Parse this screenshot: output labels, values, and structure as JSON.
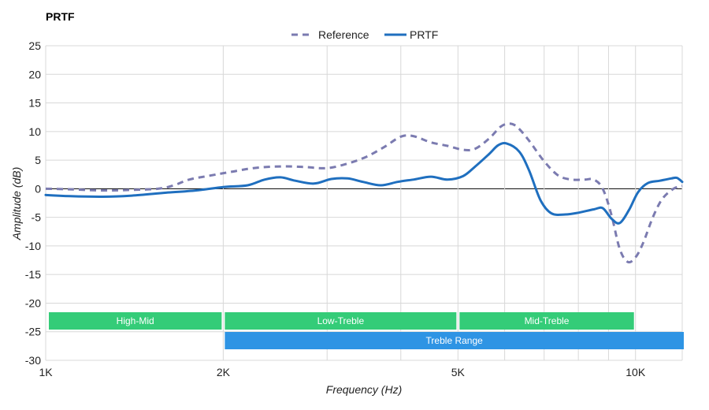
{
  "chart_data": {
    "type": "line",
    "title": "PRTF",
    "xlabel": "Frequency (Hz)",
    "ylabel": "Amplitude (dB)",
    "x_scale": "log",
    "xlim": [
      1000,
      12000
    ],
    "ylim": [
      -30,
      25
    ],
    "grid": true,
    "legend_position": "top-center",
    "x_ticks": [
      {
        "value": 1000,
        "label": "1K"
      },
      {
        "value": 2000,
        "label": "2K"
      },
      {
        "value": 5000,
        "label": "5K"
      },
      {
        "value": 10000,
        "label": "10K"
      }
    ],
    "x_minor_gridlines": [
      3000,
      4000,
      6000,
      7000,
      8000,
      9000,
      12000
    ],
    "y_ticks": [
      25,
      20,
      15,
      10,
      5,
      0,
      -5,
      -10,
      -15,
      -20,
      -25,
      -30
    ],
    "series": [
      {
        "name": "Reference",
        "color": "#7b7bb0",
        "style": "dashed",
        "points": [
          [
            1000,
            0
          ],
          [
            1100,
            -0.1
          ],
          [
            1250,
            -0.3
          ],
          [
            1400,
            -0.2
          ],
          [
            1550,
            0
          ],
          [
            1650,
            0.6
          ],
          [
            1750,
            1.6
          ],
          [
            1900,
            2.3
          ],
          [
            2050,
            2.9
          ],
          [
            2250,
            3.6
          ],
          [
            2500,
            3.9
          ],
          [
            2750,
            3.8
          ],
          [
            3000,
            3.6
          ],
          [
            3250,
            4.4
          ],
          [
            3500,
            5.6
          ],
          [
            3750,
            7.3
          ],
          [
            4000,
            9.1
          ],
          [
            4200,
            9.2
          ],
          [
            4500,
            8.1
          ],
          [
            4800,
            7.5
          ],
          [
            5100,
            6.8
          ],
          [
            5350,
            7.0
          ],
          [
            5650,
            8.8
          ],
          [
            5900,
            10.8
          ],
          [
            6100,
            11.4
          ],
          [
            6300,
            10.8
          ],
          [
            6600,
            8.4
          ],
          [
            7000,
            4.8
          ],
          [
            7400,
            2.3
          ],
          [
            7800,
            1.6
          ],
          [
            8200,
            1.6
          ],
          [
            8500,
            1.6
          ],
          [
            8800,
            0
          ],
          [
            9100,
            -4.5
          ],
          [
            9400,
            -10.5
          ],
          [
            9700,
            -12.8
          ],
          [
            10000,
            -12.0
          ],
          [
            10300,
            -9.5
          ],
          [
            10700,
            -5.0
          ],
          [
            11100,
            -1.8
          ],
          [
            11600,
            0
          ],
          [
            12000,
            0.5
          ]
        ]
      },
      {
        "name": "PRTF",
        "color": "#1f6fbf",
        "style": "solid",
        "points": [
          [
            1000,
            -1.1
          ],
          [
            1100,
            -1.3
          ],
          [
            1250,
            -1.4
          ],
          [
            1400,
            -1.2
          ],
          [
            1600,
            -0.7
          ],
          [
            1800,
            -0.3
          ],
          [
            2000,
            0.3
          ],
          [
            2200,
            0.6
          ],
          [
            2350,
            1.6
          ],
          [
            2500,
            2.0
          ],
          [
            2650,
            1.4
          ],
          [
            2850,
            0.9
          ],
          [
            3050,
            1.7
          ],
          [
            3250,
            1.8
          ],
          [
            3450,
            1.2
          ],
          [
            3700,
            0.6
          ],
          [
            3950,
            1.2
          ],
          [
            4200,
            1.6
          ],
          [
            4500,
            2.1
          ],
          [
            4800,
            1.6
          ],
          [
            5100,
            2.2
          ],
          [
            5350,
            3.9
          ],
          [
            5650,
            6.1
          ],
          [
            5850,
            7.6
          ],
          [
            6050,
            7.9
          ],
          [
            6350,
            6.5
          ],
          [
            6600,
            3.2
          ],
          [
            6900,
            -2.0
          ],
          [
            7200,
            -4.3
          ],
          [
            7600,
            -4.5
          ],
          [
            8000,
            -4.2
          ],
          [
            8500,
            -3.6
          ],
          [
            8800,
            -3.4
          ],
          [
            9100,
            -5.2
          ],
          [
            9400,
            -6.0
          ],
          [
            9750,
            -3.7
          ],
          [
            10100,
            -0.6
          ],
          [
            10500,
            1.0
          ],
          [
            11000,
            1.4
          ],
          [
            11500,
            1.8
          ],
          [
            11750,
            1.9
          ],
          [
            12000,
            1.2
          ]
        ]
      }
    ],
    "bands": [
      {
        "label": "High-Mid",
        "start": 1000,
        "end": 2000,
        "row": 1,
        "color": "#34cc78"
      },
      {
        "label": "Low-Treble",
        "start": 2000,
        "end": 5000,
        "row": 1,
        "color": "#34cc78"
      },
      {
        "label": "Mid-Treble",
        "start": 5000,
        "end": 10000,
        "row": 1,
        "color": "#34cc78"
      },
      {
        "label": "Treble Range",
        "start": 2000,
        "end": 12000,
        "row": 2,
        "color": "#2e94e4"
      }
    ]
  }
}
